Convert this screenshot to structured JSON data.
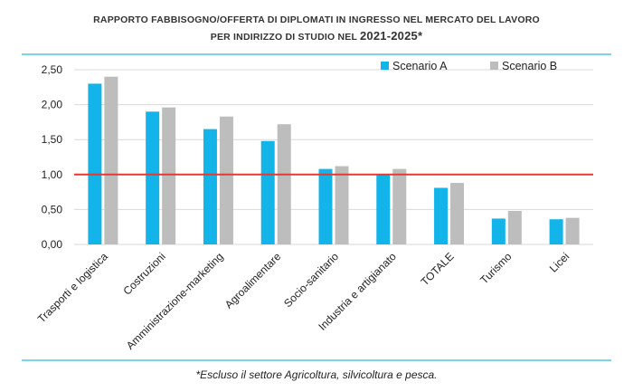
{
  "chart_data": {
    "type": "bar",
    "title_line1": "Rapporto fabbisogno/offerta di diplomati in ingresso nel mercato del lavoro",
    "title_line2_prefix": "per indirizzo di studio nel ",
    "title_line2_years": "2021-2025*",
    "categories": [
      "Trasporti e logistica",
      "Costruzioni",
      "Amministrazione-marketing",
      "Agroalimentare",
      "Socio-sanitario",
      "Industria e artigianato",
      "TOTALE",
      "Turismo",
      "Licei"
    ],
    "series": [
      {
        "name": "Scenario A",
        "color": "#13b4ea",
        "values": [
          2.3,
          1.9,
          1.65,
          1.48,
          1.08,
          1.01,
          0.81,
          0.37,
          0.36
        ]
      },
      {
        "name": "Scenario B",
        "color": "#bdbdbd",
        "values": [
          2.4,
          1.96,
          1.83,
          1.72,
          1.12,
          1.08,
          0.88,
          0.48,
          0.38
        ]
      }
    ],
    "yticks": [
      "0,00",
      "0,50",
      "1,00",
      "1,50",
      "2,00",
      "2,50"
    ],
    "ylim": [
      0,
      2.5
    ],
    "reference_line": {
      "value": 1.0,
      "color": "#e53935"
    },
    "grid": true,
    "legend_position": "top-right",
    "footnote": "*Escluso il settore Agricoltura, silvicoltura e pesca."
  }
}
